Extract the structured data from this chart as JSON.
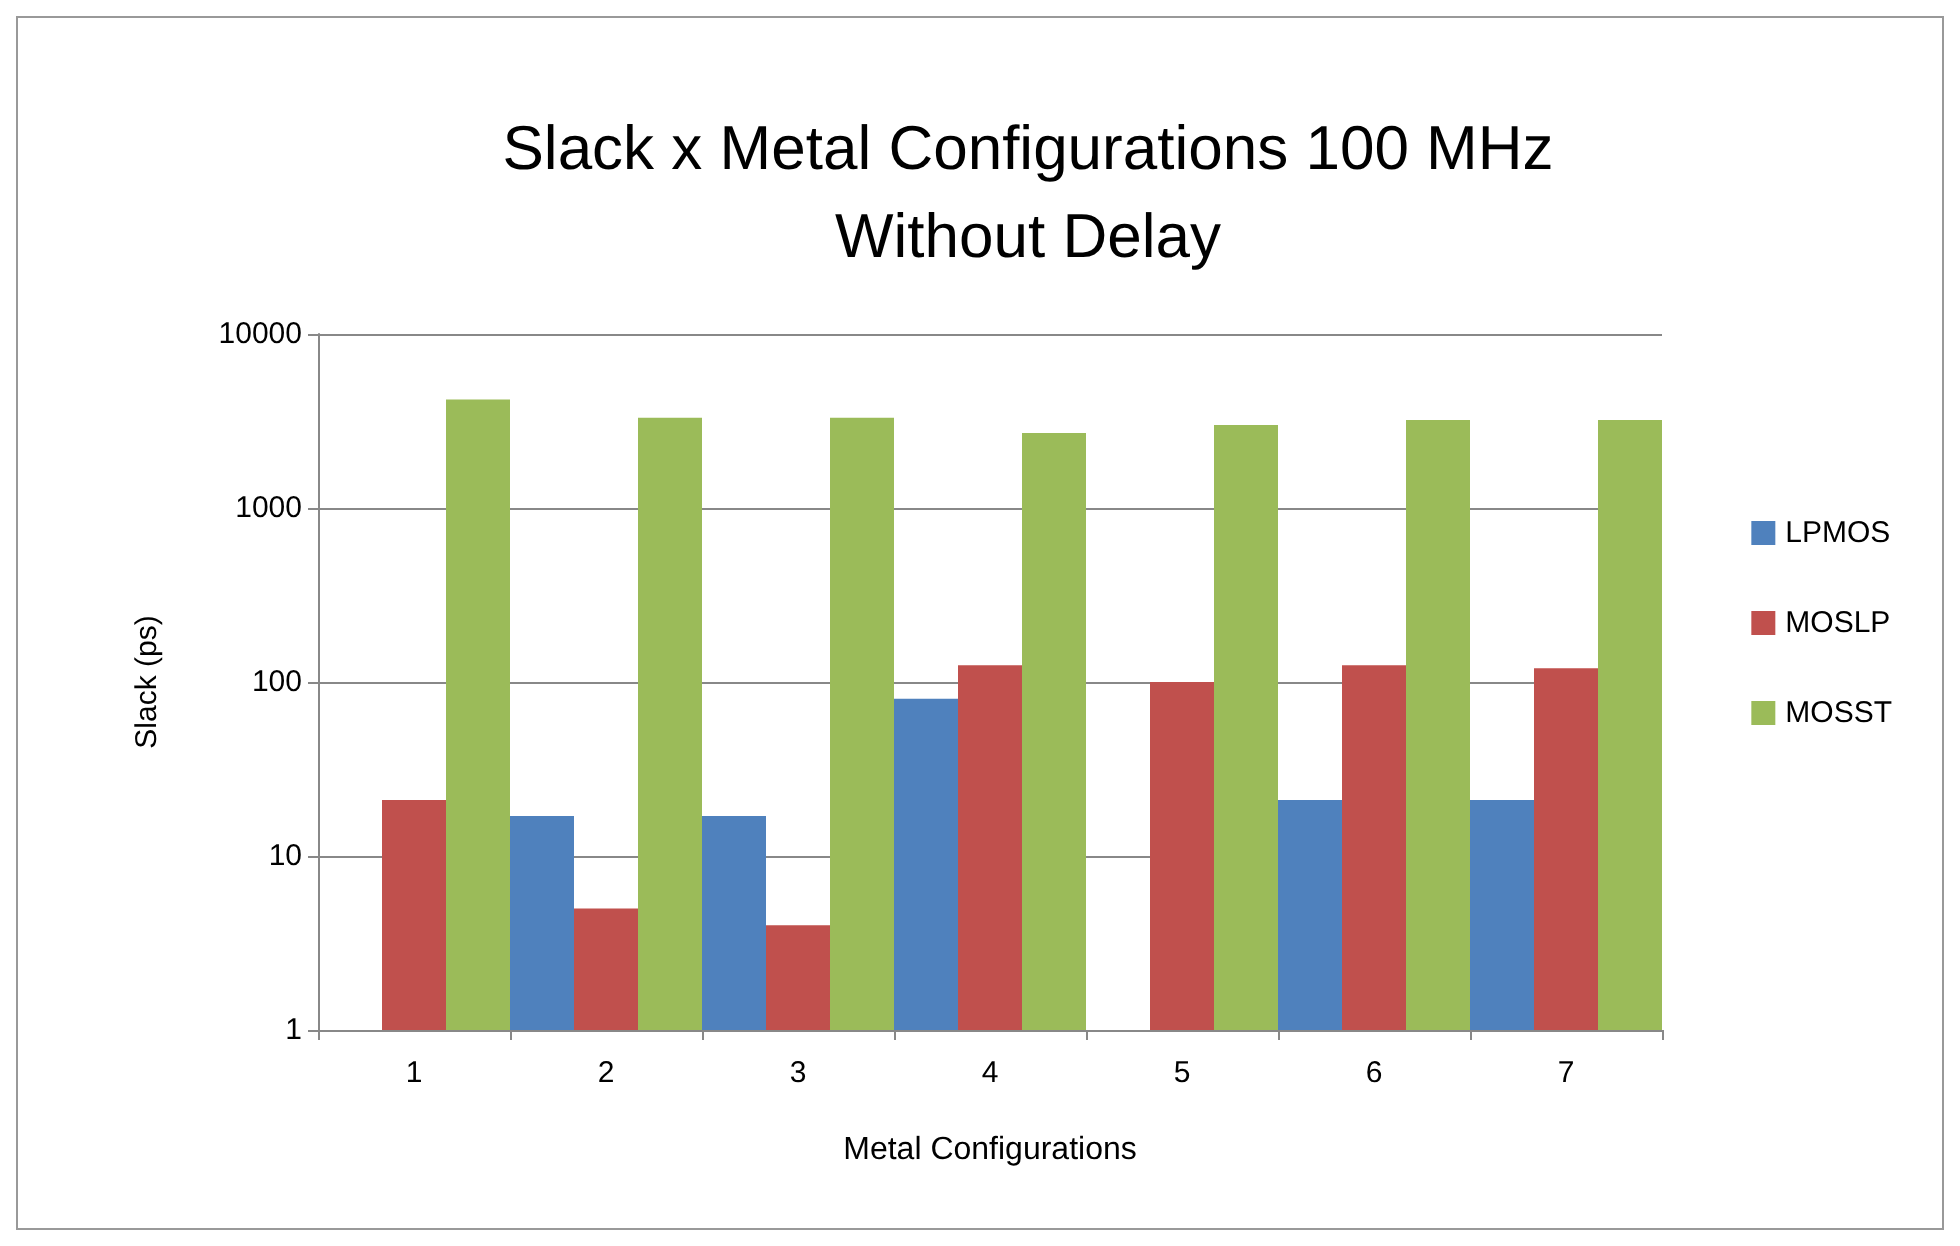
{
  "chart_data": {
    "type": "bar",
    "title": "Slack x Metal Configurations 100 MHz\nWithout Delay",
    "xlabel": "Metal Configurations",
    "ylabel": "Slack (ps)",
    "categories": [
      "1",
      "2",
      "3",
      "4",
      "5",
      "6",
      "7"
    ],
    "series": [
      {
        "name": "LPMOS",
        "color": "#4f81bd",
        "values": [
          null,
          17,
          17,
          80,
          null,
          21,
          21
        ]
      },
      {
        "name": "MOSLP",
        "color": "#c0504d",
        "values": [
          21,
          5,
          4,
          125,
          100,
          125,
          120
        ]
      },
      {
        "name": "MOSST",
        "color": "#9bbb59",
        "values": [
          4200,
          3300,
          3300,
          2700,
          3000,
          3200,
          3200
        ]
      }
    ],
    "log": "y",
    "ylim": [
      1,
      10000
    ],
    "yticks": [
      1,
      10,
      100,
      1000,
      10000
    ],
    "grid": "y",
    "legend": "right"
  }
}
